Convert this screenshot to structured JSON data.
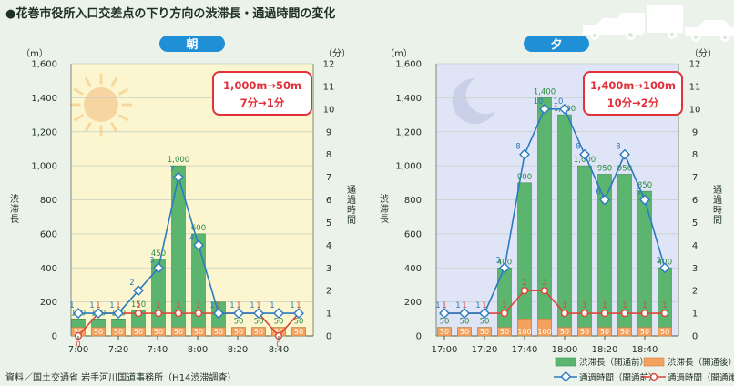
{
  "title": "●花巻市役所入口交差点の下り方向の渋滞長・通過時間の変化",
  "source": "資料／国土交通省 岩手河川国道事務所（H14渋滞調査）",
  "icon": "vehicles-icon",
  "colors": {
    "bar_before": "#5bb56f",
    "bar_after": "#f2a25e",
    "line_before": "#2b7bbf",
    "line_after": "#d9473c",
    "badge": "#1f8fd6",
    "callout_border": "#e2313a",
    "callout_text": "#e2313a",
    "morning_bg": "#fbf6cf",
    "evening_bg": "#dfe4f6"
  },
  "chart_data": [
    {
      "type": "bar",
      "badge": "朝",
      "period_icon": "sun-icon",
      "y_left_unit": "（m）",
      "y_right_unit": "（分）",
      "ylabel": "渋滞長",
      "ylabel_right": "通過時間",
      "ylim": [
        0,
        1600
      ],
      "ylim_right": [
        0,
        12
      ],
      "y_ticks": [
        0,
        200,
        400,
        600,
        800,
        1000,
        1200,
        1400,
        1600
      ],
      "y_tick_labels": [
        "0",
        "200",
        "400",
        "600",
        "800",
        "1,000",
        "1,200",
        "1,400",
        "1,600"
      ],
      "y_right_ticks": [
        0,
        1,
        2,
        3,
        4,
        5,
        6,
        7,
        8,
        9,
        10,
        11,
        12
      ],
      "x_tick_labels": [
        "7:00",
        "7:20",
        "7:40",
        "8:00",
        "8:20",
        "8:40"
      ],
      "callout": [
        "1,000m→50m",
        "7分→1分"
      ],
      "series": [
        {
          "name": "渋滞長（開通前）",
          "kind": "bar",
          "values": [
            100,
            100,
            100,
            150,
            450,
            1000,
            600,
            200,
            50,
            50,
            50,
            50
          ],
          "labels": [
            "100",
            "100",
            "100",
            "150",
            "450",
            "1,000",
            "600",
            "",
            "50",
            "50",
            "50",
            "50"
          ]
        },
        {
          "name": "渋滞長（開通後）",
          "kind": "bar",
          "values": [
            50,
            50,
            50,
            50,
            50,
            50,
            50,
            50,
            50,
            50,
            50,
            50
          ],
          "labels": [
            "50",
            "50",
            "50",
            "50",
            "50",
            "50",
            "50",
            "50",
            "50",
            "50",
            "50",
            "50"
          ]
        },
        {
          "name": "通過時間（開通前）",
          "kind": "line",
          "values": [
            1,
            1,
            1,
            2,
            3,
            7,
            4,
            1,
            1,
            1,
            1,
            1
          ]
        },
        {
          "name": "通過時間（開通後）",
          "kind": "line",
          "values": [
            0,
            1,
            1,
            1,
            1,
            1,
            1,
            1,
            1,
            1,
            0,
            1
          ]
        }
      ]
    },
    {
      "type": "bar",
      "badge": "夕",
      "period_icon": "moon-icon",
      "y_left_unit": "（m）",
      "y_right_unit": "（分）",
      "ylabel": "渋滞長",
      "ylabel_right": "通過時間",
      "ylim": [
        0,
        1600
      ],
      "ylim_right": [
        0,
        12
      ],
      "y_ticks": [
        0,
        200,
        400,
        600,
        800,
        1000,
        1200,
        1400,
        1600
      ],
      "y_tick_labels": [
        "0",
        "200",
        "400",
        "600",
        "800",
        "1,000",
        "1,200",
        "1,400",
        "1,600"
      ],
      "y_right_ticks": [
        0,
        1,
        2,
        3,
        4,
        5,
        6,
        7,
        8,
        9,
        10,
        11,
        12
      ],
      "x_tick_labels": [
        "17:00",
        "17:20",
        "17:40",
        "18:00",
        "18:20",
        "18:40"
      ],
      "callout": [
        "1,400m→100m",
        "10分→2分"
      ],
      "series": [
        {
          "name": "渋滞長（開通前）",
          "kind": "bar",
          "values": [
            50,
            50,
            50,
            400,
            900,
            1400,
            1300,
            1000,
            950,
            950,
            850,
            400
          ],
          "labels": [
            "50",
            "50",
            "50",
            "400",
            "900",
            "1,400",
            "1,300",
            "1,000",
            "950",
            "950",
            "850",
            "400"
          ]
        },
        {
          "name": "渋滞長（開通後）",
          "kind": "bar",
          "values": [
            50,
            50,
            50,
            50,
            100,
            100,
            50,
            50,
            50,
            50,
            50,
            50
          ],
          "labels": [
            "50",
            "50",
            "50",
            "50",
            "100",
            "100",
            "50",
            "50",
            "50",
            "50",
            "50",
            "50"
          ]
        },
        {
          "name": "通過時間（開通前）",
          "kind": "line",
          "values": [
            1,
            1,
            1,
            3,
            8,
            10,
            10,
            8,
            6,
            8,
            6,
            3
          ]
        },
        {
          "name": "通過時間（開通後）",
          "kind": "line",
          "values": [
            1,
            1,
            1,
            1,
            2,
            2,
            1,
            1,
            1,
            1,
            1,
            1
          ]
        }
      ]
    }
  ],
  "legend": {
    "bar_before": "渋滞長（開通前）",
    "bar_after": "渋滞長（開通後）",
    "line_before": "通過時間（開通前）",
    "line_after": "通過時間（開通後）"
  }
}
